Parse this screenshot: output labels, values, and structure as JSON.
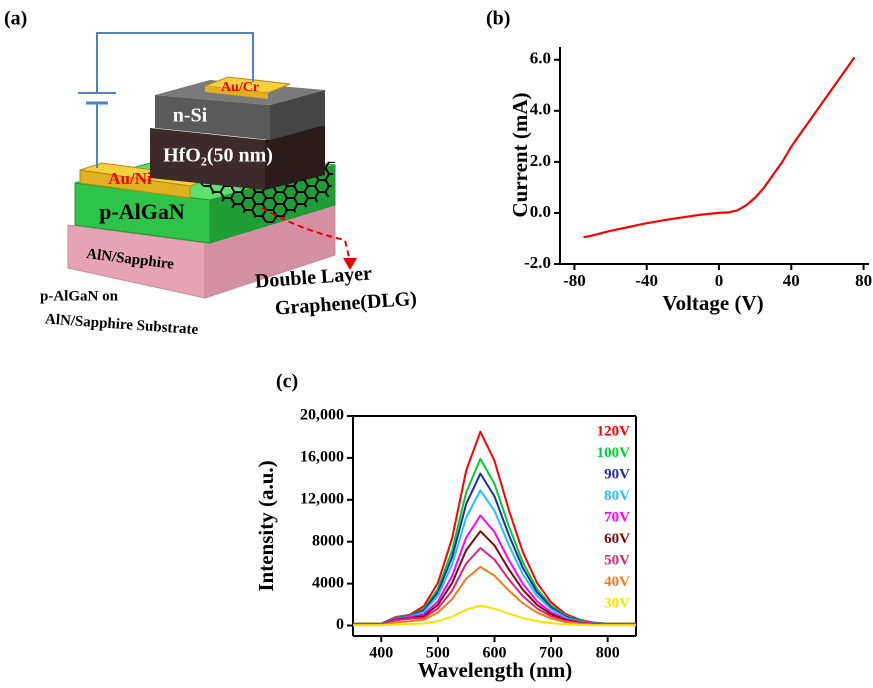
{
  "diagram": {
    "panel_label": "(a)",
    "au_cr": "Au/Cr",
    "n_si": "n-Si",
    "hfo2": "HfO₂(50 nm)",
    "au_ni": "Au/Ni",
    "p_algan": "p-AlGaN",
    "aln_sapphire": "AlN/Sapphire",
    "substrate_line1": "p-AlGaN on",
    "substrate_line2": "AlN/Sapphire Substrate",
    "dlg_line1": "Double Layer",
    "dlg_line2": "Graphene(DLG)"
  },
  "chart_data": [
    {
      "type": "line",
      "panel_label": "(b)",
      "x_label": "Voltage (V)",
      "y_label": "Current (mA)",
      "x": [
        -75,
        -70,
        -60,
        -50,
        -40,
        -30,
        -20,
        -10,
        0,
        5,
        10,
        15,
        20,
        25,
        30,
        35,
        40,
        45,
        50,
        55,
        60,
        65,
        70,
        75
      ],
      "values": [
        -0.95,
        -0.88,
        -0.7,
        -0.55,
        -0.4,
        -0.28,
        -0.17,
        -0.07,
        0,
        0.02,
        0.1,
        0.3,
        0.6,
        1.0,
        1.5,
        2.0,
        2.6,
        3.1,
        3.6,
        4.1,
        4.6,
        5.1,
        5.6,
        6.1
      ],
      "color": "#ff0000",
      "xlim": [
        -88,
        83
      ],
      "xticks": [
        -80,
        -40,
        0,
        40,
        80
      ],
      "ylim": [
        -2,
        6.5
      ],
      "yticks": [
        {
          "value": -2,
          "label": "-2.0"
        },
        {
          "value": 0,
          "label": "0.0"
        },
        {
          "value": 2,
          "label": "2.0"
        },
        {
          "value": 4,
          "label": "4.0"
        },
        {
          "value": 6,
          "label": "6.0"
        }
      ]
    },
    {
      "type": "line",
      "panel_label": "(c)",
      "x_label": "Wavelength (nm)",
      "y_label": "Intensity (a.u.)",
      "x": [
        350,
        375,
        400,
        425,
        450,
        475,
        500,
        525,
        550,
        575,
        600,
        625,
        650,
        675,
        700,
        725,
        750,
        775,
        800,
        825,
        850
      ],
      "series": [
        {
          "name": "120V",
          "color": "#ff0000",
          "values": [
            185,
            185,
            185,
            800,
            1000,
            1850,
            4070,
            8325,
            14800,
            18500,
            15725,
            11100,
            7030,
            4070,
            2220,
            1110,
            555,
            280,
            185,
            185,
            185
          ]
        },
        {
          "name": "100V",
          "color": "#00cc33",
          "values": [
            160,
            160,
            160,
            750,
            950,
            1590,
            3500,
            7155,
            12720,
            15900,
            13515,
            9540,
            6040,
            3500,
            1910,
            955,
            480,
            240,
            160,
            160,
            160
          ]
        },
        {
          "name": "90V",
          "color": "#1a2fa8",
          "values": [
            145,
            145,
            145,
            700,
            900,
            1450,
            3190,
            6525,
            11600,
            14500,
            12325,
            8700,
            5510,
            3190,
            1740,
            870,
            435,
            220,
            145,
            145,
            145
          ]
        },
        {
          "name": "80V",
          "color": "#22c4ee",
          "values": [
            130,
            130,
            130,
            650,
            850,
            1290,
            2840,
            5805,
            10320,
            12900,
            10965,
            7740,
            4900,
            2840,
            1550,
            775,
            390,
            195,
            130,
            130,
            130
          ]
        },
        {
          "name": "70V",
          "color": "#ff00ff",
          "values": [
            105,
            105,
            105,
            600,
            800,
            1050,
            2310,
            4725,
            8400,
            10500,
            8925,
            6300,
            3990,
            2310,
            1260,
            630,
            315,
            160,
            105,
            105,
            105
          ]
        },
        {
          "name": "60V",
          "color": "#7a0a0a",
          "values": [
            90,
            90,
            90,
            550,
            700,
            900,
            1980,
            4050,
            7200,
            9000,
            7650,
            5400,
            3420,
            1980,
            1080,
            540,
            270,
            135,
            90,
            90,
            90
          ]
        },
        {
          "name": "50V",
          "color": "#e0227a",
          "values": [
            75,
            75,
            75,
            500,
            650,
            740,
            1630,
            3330,
            5920,
            7400,
            6290,
            4440,
            2810,
            1630,
            890,
            445,
            220,
            110,
            75,
            75,
            75
          ]
        },
        {
          "name": "40V",
          "color": "#f07d1a",
          "values": [
            55,
            55,
            55,
            300,
            400,
            560,
            1230,
            2520,
            4480,
            5600,
            4760,
            3360,
            2130,
            1230,
            670,
            335,
            170,
            85,
            55,
            55,
            55
          ]
        },
        {
          "name": "30V",
          "color": "#f5e600",
          "values": [
            20,
            20,
            20,
            100,
            150,
            190,
            420,
            855,
            1520,
            1900,
            1615,
            1140,
            720,
            420,
            230,
            115,
            55,
            30,
            20,
            20,
            20
          ]
        }
      ],
      "xlim": [
        350,
        850
      ],
      "xticks": [
        400,
        500,
        600,
        700,
        800
      ],
      "ylim": [
        -1000,
        20000
      ],
      "yticks": [
        0,
        4000,
        8000,
        {
          "value": 12000,
          "label": "12,000"
        },
        {
          "value": 16000,
          "label": "16,000"
        },
        {
          "value": 20000,
          "label": "20,000"
        }
      ]
    }
  ]
}
